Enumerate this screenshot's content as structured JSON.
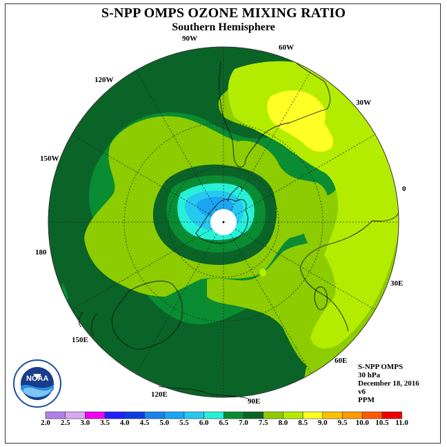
{
  "title": "S-NPP OMPS OZONE MIXING RATIO",
  "subtitle": "Southern Hemisphere",
  "map": {
    "projection": "polar stereographic",
    "hemisphere": "south",
    "longitude_labels": [
      {
        "text": "90W",
        "lon": -90
      },
      {
        "text": "60W",
        "lon": -60
      },
      {
        "text": "30W",
        "lon": -30
      },
      {
        "text": "0",
        "lon": 0
      },
      {
        "text": "30E",
        "lon": 30
      },
      {
        "text": "60E",
        "lon": 60
      },
      {
        "text": "90E",
        "lon": 90
      },
      {
        "text": "120E",
        "lon": 120
      },
      {
        "text": "150E",
        "lon": 150
      },
      {
        "text": "180",
        "lon": 180
      },
      {
        "text": "150W",
        "lon": -150
      },
      {
        "text": "120W",
        "lon": -120
      }
    ],
    "graticule_latitudes": [
      -30,
      -60
    ]
  },
  "info": {
    "instrument": "S-NPP OMPS",
    "level": "30 hPa",
    "date": "December 18, 2016",
    "version": "v6",
    "units": "PPM"
  },
  "colorbar": {
    "levels": [
      "2.0",
      "2.5",
      "3.0",
      "3.5",
      "4.0",
      "4.5",
      "5.0",
      "5.5",
      "6.0",
      "6.5",
      "7.0",
      "7.5",
      "8.0",
      "8.5",
      "9.0",
      "9.5",
      "10.0",
      "10.5",
      "11.0"
    ],
    "colors": [
      "#b27fe8",
      "#d8a8f0",
      "#f000f0",
      "#2020ff",
      "#0a3ee0",
      "#1a82ee",
      "#1aa6f2",
      "#26c8f0",
      "#26f0d8",
      "#0a8c32",
      "#0a6428",
      "#8ccc00",
      "#b4ec00",
      "#ffff26",
      "#ffc000",
      "#ff9a00",
      "#ff5a00",
      "#ee0000",
      "#8c5a32"
    ]
  },
  "logo": {
    "text": "NOAA",
    "ring_text": "NATIONAL OCEANIC AND ATMOSPHERIC ADMINISTRATION · U.S. DEPARTMENT OF COMMERCE"
  }
}
